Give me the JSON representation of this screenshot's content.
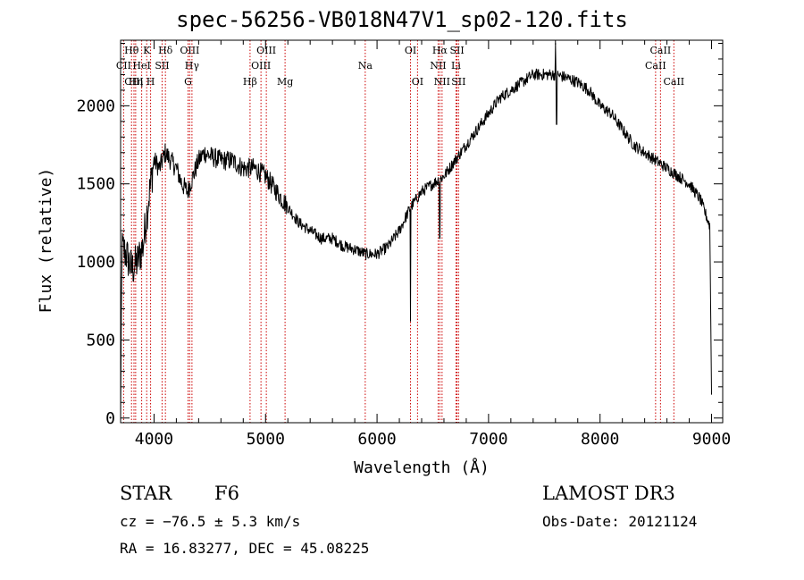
{
  "chart_data": {
    "type": "line",
    "title": "spec-56256-VB018N47V1_sp02-120.fits",
    "xlabel": "Wavelength (Å)",
    "ylabel": "Flux (relative)",
    "xlim": [
      3700,
      9100
    ],
    "ylim": [
      -30,
      2420
    ],
    "xticks": [
      4000,
      5000,
      6000,
      7000,
      8000,
      9000
    ],
    "yticks": [
      0,
      500,
      1000,
      1500,
      2000
    ],
    "series": [
      {
        "name": "spectrum",
        "x": [
          3700,
          3750,
          3800,
          3850,
          3900,
          3950,
          4000,
          4050,
          4100,
          4150,
          4200,
          4250,
          4300,
          4350,
          4400,
          4450,
          4500,
          4600,
          4700,
          4800,
          4900,
          5000,
          5100,
          5200,
          5300,
          5400,
          5500,
          5600,
          5700,
          5800,
          5900,
          6000,
          6100,
          6200,
          6300,
          6400,
          6500,
          6600,
          6700,
          6800,
          6900,
          7000,
          7100,
          7200,
          7300,
          7400,
          7500,
          7600,
          7700,
          7800,
          7900,
          8000,
          8100,
          8200,
          8300,
          8400,
          8500,
          8600,
          8700,
          8800,
          8900,
          9000
        ],
        "y": [
          1100,
          1050,
          950,
          1000,
          1100,
          1400,
          1650,
          1600,
          1700,
          1650,
          1600,
          1500,
          1450,
          1550,
          1650,
          1700,
          1680,
          1650,
          1650,
          1600,
          1600,
          1550,
          1450,
          1350,
          1250,
          1200,
          1150,
          1150,
          1100,
          1080,
          1050,
          1050,
          1100,
          1200,
          1350,
          1450,
          1500,
          1550,
          1650,
          1750,
          1850,
          1950,
          2050,
          2100,
          2150,
          2200,
          2200,
          2200,
          2180,
          2150,
          2100,
          2000,
          1950,
          1850,
          1750,
          1700,
          1650,
          1600,
          1550,
          1500,
          1400,
          1200
        ]
      }
    ],
    "lines": [
      {
        "name": "CII",
        "wavelength": 3727,
        "row": 1
      },
      {
        "name": "Hθ",
        "wavelength": 3798,
        "row": 0
      },
      {
        "name": "CIII",
        "wavelength": 3820,
        "row": 2
      },
      {
        "name": "Hη",
        "wavelength": 3835,
        "row": 2
      },
      {
        "name": "HeI",
        "wavelength": 3889,
        "row": 1
      },
      {
        "name": "K",
        "wavelength": 3934,
        "row": 0
      },
      {
        "name": "H",
        "wavelength": 3969,
        "row": 2
      },
      {
        "name": "SII",
        "wavelength": 4072,
        "row": 1
      },
      {
        "name": "Hδ",
        "wavelength": 4102,
        "row": 0
      },
      {
        "name": "G",
        "wavelength": 4305,
        "row": 2
      },
      {
        "name": "OIII",
        "wavelength": 4320,
        "row": 0
      },
      {
        "name": "Hγ",
        "wavelength": 4340,
        "row": 1
      },
      {
        "name": "Hβ",
        "wavelength": 4861,
        "row": 2
      },
      {
        "name": "OIII",
        "wavelength": 4959,
        "row": 1
      },
      {
        "name": "OIII",
        "wavelength": 5007,
        "row": 0
      },
      {
        "name": "Mg",
        "wavelength": 5175,
        "row": 2
      },
      {
        "name": "Na",
        "wavelength": 5894,
        "row": 1
      },
      {
        "name": "OI",
        "wavelength": 6300,
        "row": 0
      },
      {
        "name": "OI",
        "wavelength": 6363,
        "row": 2
      },
      {
        "name": "NII",
        "wavelength": 6548,
        "row": 1
      },
      {
        "name": "Hα",
        "wavelength": 6563,
        "row": 0
      },
      {
        "name": "NII",
        "wavelength": 6583,
        "row": 2
      },
      {
        "name": "Li",
        "wavelength": 6708,
        "row": 1
      },
      {
        "name": "SII",
        "wavelength": 6717,
        "row": 0
      },
      {
        "name": "SII",
        "wavelength": 6731,
        "row": 2
      },
      {
        "name": "CaII",
        "wavelength": 8498,
        "row": 1
      },
      {
        "name": "CaII",
        "wavelength": 8542,
        "row": 0
      },
      {
        "name": "CaII",
        "wavelength": 8662,
        "row": 2
      }
    ]
  },
  "info": {
    "class": "STAR",
    "subclass": "F6",
    "survey": "LAMOST DR3",
    "cz": "cz = −76.5 ± 5.3 km/s",
    "obs_date": "Obs-Date: 20121124",
    "coords": "RA =  16.83277, DEC =  45.08225"
  },
  "colors": {
    "line_marker": "#cc0000",
    "spectrum": "#000000"
  }
}
